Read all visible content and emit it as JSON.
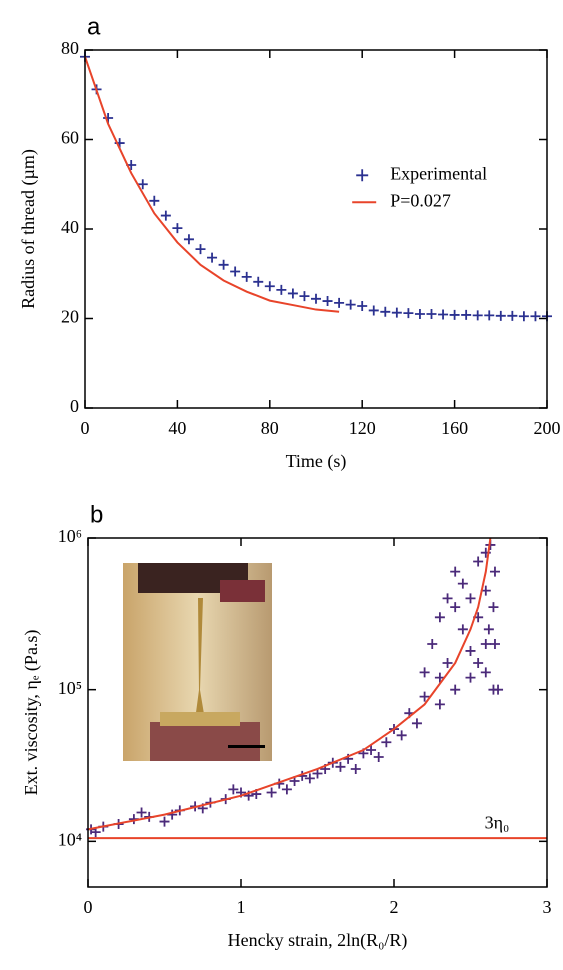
{
  "chart_data": [
    {
      "type": "scatter",
      "title": "a",
      "xlabel": "Time (s)",
      "ylabel": "Radius of thread (µm)",
      "xlim": [
        0,
        200
      ],
      "ylim": [
        0,
        80
      ],
      "xticks": [
        0,
        40,
        80,
        120,
        160,
        200
      ],
      "yticks": [
        0,
        20,
        40,
        60,
        80
      ],
      "log_y": false,
      "legend": "right",
      "series": [
        {
          "name": "Experimental",
          "color": "#2b3190",
          "style": "marker",
          "x": [
            0,
            5,
            10,
            15,
            20,
            25,
            30,
            35,
            40,
            45,
            50,
            55,
            60,
            65,
            70,
            75,
            80,
            85,
            90,
            95,
            100,
            105,
            110,
            115,
            120,
            125,
            130,
            135,
            140,
            145,
            150,
            155,
            160,
            165,
            170,
            175,
            180,
            185,
            190,
            195,
            200
          ],
          "values": [
            78.5,
            71.2,
            64.8,
            59.2,
            54.3,
            50.0,
            46.3,
            43.0,
            40.2,
            37.7,
            35.5,
            33.6,
            32.0,
            30.5,
            29.3,
            28.2,
            27.2,
            26.4,
            25.6,
            25.0,
            24.4,
            23.9,
            23.5,
            23.1,
            22.8,
            21.8,
            21.5,
            21.3,
            21.2,
            21.0,
            21.0,
            20.9,
            20.8,
            20.8,
            20.7,
            20.7,
            20.6,
            20.6,
            20.5,
            20.5,
            20.5
          ]
        },
        {
          "name": "P=0.027",
          "color": "#e8442a",
          "style": "line",
          "x": [
            0,
            10,
            20,
            30,
            40,
            50,
            60,
            70,
            80,
            90,
            100,
            110
          ],
          "values": [
            78.5,
            63.5,
            52.5,
            43.5,
            37,
            32,
            28.5,
            26,
            24,
            23,
            22,
            21.5
          ]
        }
      ]
    },
    {
      "type": "scatter",
      "title": "b",
      "xlabel": "Hencky strain, 2ln(R₀/R)",
      "ylabel": "Ext. viscosity, ηₑ (Pa.s)",
      "xlim": [
        0,
        3
      ],
      "ylim": [
        5000,
        1000000
      ],
      "xticks": [
        0,
        1,
        2,
        3
      ],
      "yticks": [
        {
          "value": 10000,
          "label": "10⁴"
        },
        {
          "value": 100000,
          "label": "10⁵"
        },
        {
          "value": 1000000,
          "label": "10⁶"
        }
      ],
      "log_y": true,
      "hline": {
        "value": 10500,
        "label": "3η₀",
        "color": "#e8442a"
      },
      "series": [
        {
          "color": "#4b2a7a",
          "style": "marker",
          "x": [
            0.02,
            0.05,
            0.1,
            0.2,
            0.3,
            0.35,
            0.4,
            0.5,
            0.55,
            0.6,
            0.7,
            0.75,
            0.8,
            0.9,
            0.95,
            1.0,
            1.05,
            1.1,
            1.2,
            1.25,
            1.3,
            1.35,
            1.4,
            1.45,
            1.5,
            1.55,
            1.6,
            1.65,
            1.7,
            1.75,
            1.8,
            1.85,
            1.9,
            1.95,
            2.0,
            2.05,
            2.1,
            2.15,
            2.2,
            2.25,
            2.3,
            2.3,
            2.35,
            2.4,
            2.4,
            2.45,
            2.45,
            2.5,
            2.5,
            2.5,
            2.55,
            2.55,
            2.55,
            2.6,
            2.6,
            2.6,
            2.6,
            2.62,
            2.63,
            2.65,
            2.65,
            2.66,
            2.66,
            2.68,
            2.2,
            2.3,
            2.35,
            2.4
          ],
          "values": [
            12000,
            11500,
            12500,
            13000,
            14000,
            15500,
            14500,
            13500,
            15000,
            16000,
            17000,
            16500,
            18000,
            19000,
            22000,
            21000,
            20000,
            20500,
            21000,
            24000,
            22000,
            25000,
            27000,
            26000,
            28000,
            30000,
            33000,
            31000,
            35000,
            30000,
            38000,
            40000,
            36000,
            45000,
            55000,
            50000,
            70000,
            60000,
            90000,
            200000,
            120000,
            80000,
            150000,
            350000,
            100000,
            250000,
            500000,
            180000,
            120000,
            400000,
            300000,
            150000,
            700000,
            200000,
            800000,
            130000,
            450000,
            250000,
            900000,
            350000,
            100000,
            600000,
            200000,
            100000,
            130000,
            300000,
            400000,
            600000
          ]
        },
        {
          "color": "#e8442a",
          "style": "line",
          "x": [
            0,
            0.5,
            1,
            1.5,
            1.8,
            2,
            2.2,
            2.4,
            2.5,
            2.55,
            2.6,
            2.63
          ],
          "values": [
            12000,
            15000,
            20000,
            30000,
            40000,
            55000,
            80000,
            150000,
            250000,
            350000,
            600000,
            1000000
          ]
        }
      ]
    }
  ]
}
